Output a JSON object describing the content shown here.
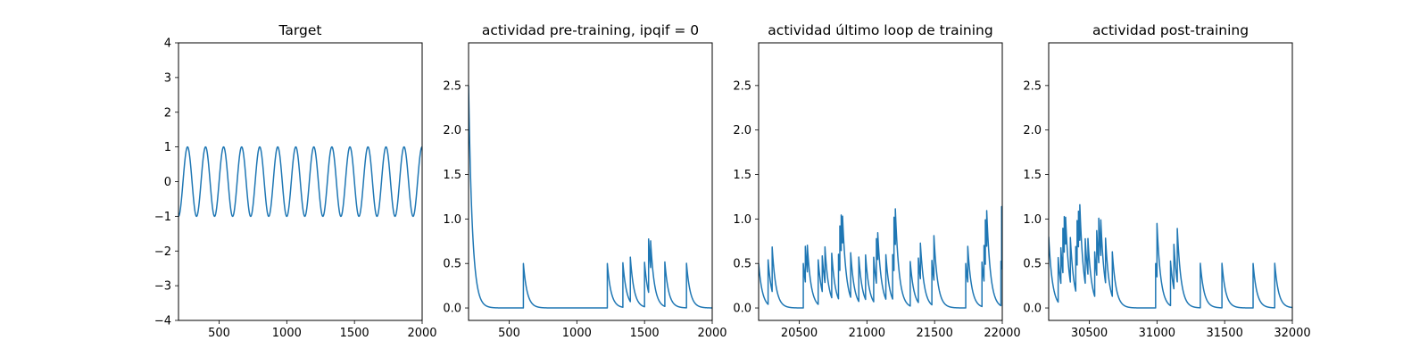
{
  "chart_data": [
    {
      "type": "line",
      "title": "Target",
      "xlim": [
        200,
        2000
      ],
      "ylim": [
        -4,
        4
      ],
      "xticks": [
        500,
        1000,
        1500,
        2000
      ],
      "xtick_labels": [
        "500",
        "1000",
        "1500",
        "2000"
      ],
      "yticks": [
        -4,
        -3,
        -2,
        -1,
        0,
        1,
        2,
        3,
        4
      ],
      "ytick_labels": [
        "−4",
        "−3",
        "−2",
        "−1",
        "0",
        "1",
        "2",
        "3",
        "4"
      ],
      "series": [
        {
          "color": "#1f77b4",
          "function": "-cos(2*pi*(t-200)/133.3)",
          "x_range": [
            200,
            2000
          ],
          "amplitude": 1,
          "period": 133.3,
          "y_at_start": -1
        }
      ]
    },
    {
      "type": "line",
      "title": "actividad pre-training, ipqif = 0",
      "xlim": [
        200,
        2000
      ],
      "ylim": [
        -0.14,
        2.98
      ],
      "xticks": [
        500,
        1000,
        1500,
        2000
      ],
      "xtick_labels": [
        "500",
        "1000",
        "1500",
        "2000"
      ],
      "yticks": [
        0.0,
        0.5,
        1.0,
        1.5,
        2.0,
        2.5
      ],
      "ytick_labels": [
        "0.0",
        "0.5",
        "1.0",
        "1.5",
        "2.0",
        "2.5"
      ],
      "series": [
        {
          "color": "#1f77b4",
          "baseline": 0,
          "decay_tau": 28,
          "initial_value": 2.5,
          "spikes": [
            {
              "t": 605,
              "amp": 0.5
            },
            {
              "t": 1225,
              "amp": 0.5
            },
            {
              "t": 1340,
              "amp": 0.5
            },
            {
              "t": 1395,
              "amp": 0.5
            },
            {
              "t": 1500,
              "amp": 0.5
            },
            {
              "t": 1530,
              "amp": 0.6
            },
            {
              "t": 1545,
              "amp": 0.3
            },
            {
              "t": 1650,
              "amp": 0.5
            },
            {
              "t": 1810,
              "amp": 0.5
            }
          ]
        }
      ]
    },
    {
      "type": "line",
      "title": "actividad último loop de training",
      "xlim": [
        20200,
        22000
      ],
      "ylim": [
        -0.14,
        2.98
      ],
      "xticks": [
        20500,
        21000,
        21500,
        22000
      ],
      "xtick_labels": [
        "20500",
        "21000",
        "21500",
        "22000"
      ],
      "yticks": [
        0.0,
        0.5,
        1.0,
        1.5,
        2.0,
        2.5
      ],
      "ytick_labels": [
        "0.0",
        "0.5",
        "1.0",
        "1.5",
        "2.0",
        "2.5"
      ],
      "series": [
        {
          "color": "#1f77b4",
          "baseline": 0,
          "decay_tau": 28,
          "initial_value": 0.5,
          "spikes": [
            {
              "t": 20270,
              "amp": 0.5
            },
            {
              "t": 20300,
              "amp": 0.5
            },
            {
              "t": 20530,
              "amp": 0.5
            },
            {
              "t": 20545,
              "amp": 0.4
            },
            {
              "t": 20560,
              "amp": 0.3
            },
            {
              "t": 20640,
              "amp": 0.5
            },
            {
              "t": 20670,
              "amp": 0.4
            },
            {
              "t": 20690,
              "amp": 0.4
            },
            {
              "t": 20740,
              "amp": 0.5
            },
            {
              "t": 20790,
              "amp": 0.5
            },
            {
              "t": 20800,
              "amp": 0.5
            },
            {
              "t": 20810,
              "amp": 0.4
            },
            {
              "t": 20820,
              "amp": 0.3
            },
            {
              "t": 20880,
              "amp": 0.5
            },
            {
              "t": 20940,
              "amp": 0.5
            },
            {
              "t": 20990,
              "amp": 0.5
            },
            {
              "t": 21050,
              "amp": 0.5
            },
            {
              "t": 21070,
              "amp": 0.5
            },
            {
              "t": 21080,
              "amp": 0.3
            },
            {
              "t": 21140,
              "amp": 0.5
            },
            {
              "t": 21190,
              "amp": 0.5
            },
            {
              "t": 21200,
              "amp": 0.6
            },
            {
              "t": 21210,
              "amp": 0.4
            },
            {
              "t": 21320,
              "amp": 0.5
            },
            {
              "t": 21380,
              "amp": 0.5
            },
            {
              "t": 21395,
              "amp": 0.4
            },
            {
              "t": 21480,
              "amp": 0.5
            },
            {
              "t": 21495,
              "amp": 0.5
            },
            {
              "t": 21730,
              "amp": 0.5
            },
            {
              "t": 21745,
              "amp": 0.4
            },
            {
              "t": 21850,
              "amp": 0.5
            },
            {
              "t": 21865,
              "amp": 0.4
            },
            {
              "t": 21875,
              "amp": 0.5
            },
            {
              "t": 21885,
              "amp": 0.4
            },
            {
              "t": 21990,
              "amp": 0.5
            },
            {
              "t": 21995,
              "amp": 0.7
            }
          ]
        }
      ]
    },
    {
      "type": "line",
      "title": "actividad post-training",
      "xlim": [
        30200,
        32000
      ],
      "ylim": [
        -0.14,
        2.98
      ],
      "xticks": [
        30500,
        31000,
        31500,
        32000
      ],
      "xtick_labels": [
        "30500",
        "31000",
        "31500",
        "32000"
      ],
      "yticks": [
        0.0,
        0.5,
        1.0,
        1.5,
        2.0,
        2.5
      ],
      "ytick_labels": [
        "0.0",
        "0.5",
        "1.0",
        "1.5",
        "2.0",
        "2.5"
      ],
      "series": [
        {
          "color": "#1f77b4",
          "baseline": 0,
          "decay_tau": 28,
          "initial_value": 0.8,
          "spikes": [
            {
              "t": 30270,
              "amp": 0.5
            },
            {
              "t": 30290,
              "amp": 0.4
            },
            {
              "t": 30305,
              "amp": 0.5
            },
            {
              "t": 30315,
              "amp": 0.4
            },
            {
              "t": 30325,
              "amp": 0.3
            },
            {
              "t": 30360,
              "amp": 0.5
            },
            {
              "t": 30400,
              "amp": 0.5
            },
            {
              "t": 30410,
              "amp": 0.5
            },
            {
              "t": 30420,
              "amp": 0.4
            },
            {
              "t": 30430,
              "amp": 0.4
            },
            {
              "t": 30470,
              "amp": 0.5
            },
            {
              "t": 30490,
              "amp": 0.4
            },
            {
              "t": 30540,
              "amp": 0.5
            },
            {
              "t": 30555,
              "amp": 0.5
            },
            {
              "t": 30570,
              "amp": 0.5
            },
            {
              "t": 30585,
              "amp": 0.4
            },
            {
              "t": 30620,
              "amp": 0.5
            },
            {
              "t": 30670,
              "amp": 0.5
            },
            {
              "t": 30990,
              "amp": 0.5
            },
            {
              "t": 31000,
              "amp": 0.6
            },
            {
              "t": 31100,
              "amp": 0.5
            },
            {
              "t": 31125,
              "amp": 0.5
            },
            {
              "t": 31150,
              "amp": 0.6
            },
            {
              "t": 31320,
              "amp": 0.5
            },
            {
              "t": 31480,
              "amp": 0.5
            },
            {
              "t": 31710,
              "amp": 0.5
            },
            {
              "t": 31870,
              "amp": 0.5
            }
          ]
        }
      ]
    }
  ]
}
